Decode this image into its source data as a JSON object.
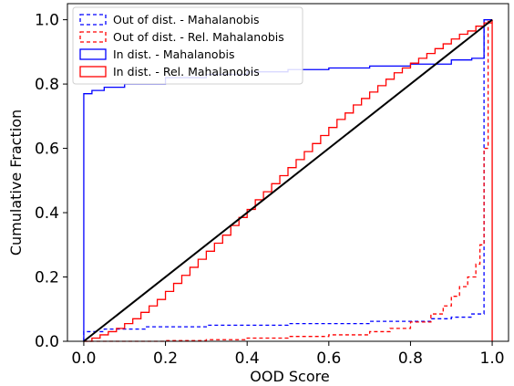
{
  "chart_data": {
    "type": "line",
    "xlabel": "OOD Score",
    "ylabel": "Cumulative Fraction",
    "xlim": [
      -0.04,
      1.04
    ],
    "ylim": [
      0.0,
      1.05
    ],
    "xticks": [
      0.0,
      0.2,
      0.4,
      0.6,
      0.8,
      1.0
    ],
    "yticks": [
      0.0,
      0.2,
      0.4,
      0.6,
      0.8,
      1.0
    ],
    "tick_labels_x": [
      "0.0",
      "0.2",
      "0.4",
      "0.6",
      "0.8",
      "1.0"
    ],
    "tick_labels_y": [
      "0.0",
      "0.2",
      "0.4",
      "0.6",
      "0.8",
      "1.0"
    ],
    "grid": false,
    "legend_position": "top-left",
    "series": [
      {
        "name": "Out of dist. - Mahalanobis",
        "color": "#0000ff",
        "dashed": true,
        "step": true,
        "x": [
          0.0,
          0.0,
          0.05,
          0.15,
          0.3,
          0.5,
          0.7,
          0.85,
          0.9,
          0.95,
          0.98,
          0.98,
          1.0
        ],
        "y": [
          0.0,
          0.03,
          0.038,
          0.045,
          0.05,
          0.055,
          0.062,
          0.07,
          0.075,
          0.085,
          0.09,
          1.0,
          1.0
        ]
      },
      {
        "name": "Out of dist. - Rel. Mahalanobis",
        "color": "#ff0000",
        "dashed": true,
        "step": true,
        "x": [
          0.0,
          0.1,
          0.2,
          0.3,
          0.4,
          0.5,
          0.6,
          0.7,
          0.75,
          0.8,
          0.85,
          0.88,
          0.9,
          0.92,
          0.94,
          0.96,
          0.97,
          0.98,
          0.98,
          0.99,
          1.0
        ],
        "y": [
          0.0,
          0.0,
          0.002,
          0.005,
          0.01,
          0.015,
          0.02,
          0.03,
          0.04,
          0.06,
          0.085,
          0.11,
          0.14,
          0.17,
          0.2,
          0.24,
          0.3,
          0.42,
          0.6,
          1.0,
          1.0
        ]
      },
      {
        "name": "In dist. - Mahalanobis",
        "color": "#0000ff",
        "dashed": false,
        "step": true,
        "x": [
          0.0,
          0.0,
          0.02,
          0.05,
          0.1,
          0.2,
          0.3,
          0.4,
          0.5,
          0.6,
          0.7,
          0.8,
          0.9,
          0.95,
          0.98,
          0.98,
          1.0
        ],
        "y": [
          0.0,
          0.77,
          0.78,
          0.79,
          0.8,
          0.82,
          0.83,
          0.838,
          0.845,
          0.85,
          0.856,
          0.862,
          0.875,
          0.88,
          0.885,
          1.0,
          1.0
        ]
      },
      {
        "name": "In dist. - Rel. Mahalanobis",
        "color": "#ff0000",
        "dashed": false,
        "step": true,
        "x": [
          0.0,
          0.02,
          0.04,
          0.06,
          0.08,
          0.1,
          0.12,
          0.14,
          0.16,
          0.18,
          0.2,
          0.22,
          0.24,
          0.26,
          0.28,
          0.3,
          0.32,
          0.34,
          0.36,
          0.38,
          0.4,
          0.42,
          0.44,
          0.46,
          0.48,
          0.5,
          0.52,
          0.54,
          0.56,
          0.58,
          0.6,
          0.62,
          0.64,
          0.66,
          0.68,
          0.7,
          0.72,
          0.74,
          0.76,
          0.78,
          0.8,
          0.82,
          0.84,
          0.86,
          0.88,
          0.9,
          0.92,
          0.94,
          0.96,
          0.98,
          1.0,
          1.0
        ],
        "y": [
          0.0,
          0.01,
          0.02,
          0.03,
          0.04,
          0.055,
          0.07,
          0.09,
          0.11,
          0.13,
          0.155,
          0.18,
          0.205,
          0.23,
          0.255,
          0.28,
          0.305,
          0.33,
          0.36,
          0.385,
          0.41,
          0.44,
          0.465,
          0.49,
          0.515,
          0.54,
          0.565,
          0.59,
          0.615,
          0.64,
          0.665,
          0.69,
          0.71,
          0.735,
          0.755,
          0.775,
          0.795,
          0.815,
          0.835,
          0.85,
          0.865,
          0.88,
          0.895,
          0.91,
          0.925,
          0.94,
          0.955,
          0.965,
          0.98,
          0.99,
          1.0,
          0.0
        ]
      },
      {
        "name": "",
        "color": "#000000",
        "dashed": false,
        "step": false,
        "x": [
          0.0,
          1.0
        ],
        "y": [
          0.0,
          1.0
        ]
      }
    ]
  }
}
